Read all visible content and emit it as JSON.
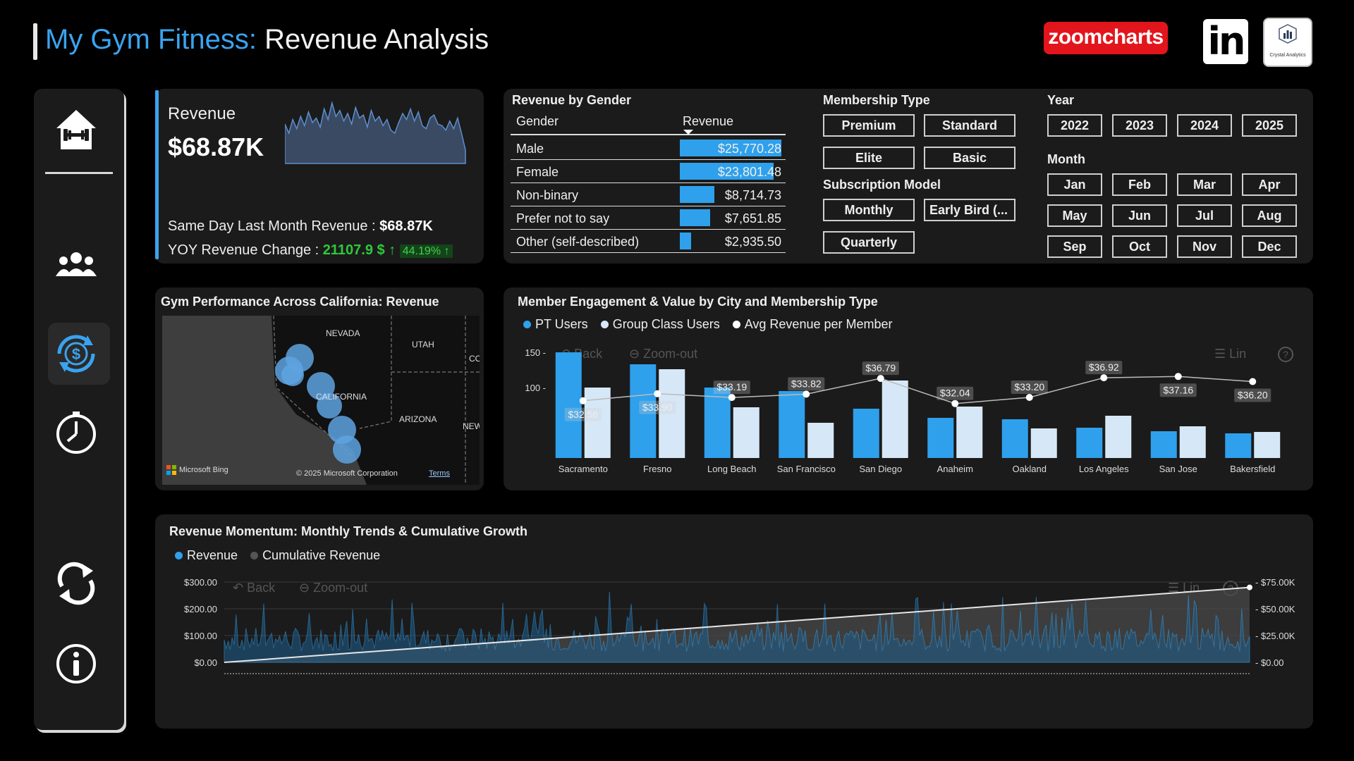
{
  "header": {
    "brand": "My Gym Fitness:",
    "title": " Revenue Analysis"
  },
  "logos": {
    "zoomcharts": "zoomcharts",
    "linkedin": "in",
    "crystal": "Crystal Analytics"
  },
  "sidebar": {
    "items": [
      "home-gym",
      "members",
      "revenue",
      "time",
      "refresh",
      "info"
    ],
    "active": "revenue"
  },
  "kpi": {
    "label": "Revenue",
    "value": "$68.87K",
    "same_day_label": "Same Day Last Month Revenue : ",
    "same_day_value": "$68.87K",
    "yoy_label": "YOY Revenue Change : ",
    "yoy_value": "21107.9 $",
    "yoy_pct": "44.19%",
    "sparkline": [
      52,
      40,
      58,
      46,
      62,
      50,
      68,
      54,
      60,
      48,
      72,
      58,
      80,
      62,
      70,
      56,
      66,
      52,
      74,
      60,
      64,
      48,
      70,
      56,
      62,
      50,
      58,
      44,
      40,
      54,
      66,
      58,
      72,
      56,
      68,
      50,
      46,
      60,
      64,
      52,
      50,
      44,
      56,
      46,
      60,
      40,
      18
    ]
  },
  "gender": {
    "title": "Revenue by Gender",
    "col_gender": "Gender",
    "col_revenue": "Revenue",
    "rows": [
      {
        "label": "Male",
        "value": "$25,770.28",
        "amount": 25770.28
      },
      {
        "label": "Female",
        "value": "$23,801.48",
        "amount": 23801.48
      },
      {
        "label": "Non-binary",
        "value": "$8,714.73",
        "amount": 8714.73
      },
      {
        "label": "Prefer not to say",
        "value": "$7,651.85",
        "amount": 7651.85
      },
      {
        "label": "Other (self-described)",
        "value": "$2,935.50",
        "amount": 2935.5
      }
    ]
  },
  "membership": {
    "title": "Membership Type",
    "options": [
      "Premium",
      "Standard",
      "Elite",
      "Basic"
    ]
  },
  "subscription": {
    "title": "Subscription Model",
    "options": [
      "Monthly",
      "Early Bird (...",
      "Quarterly"
    ]
  },
  "year": {
    "title": "Year",
    "options": [
      "2022",
      "2023",
      "2024",
      "2025"
    ]
  },
  "month": {
    "title": "Month",
    "options": [
      "Jan",
      "Feb",
      "Mar",
      "Apr",
      "May",
      "Jun",
      "Jul",
      "Aug",
      "Sep",
      "Oct",
      "Nov",
      "Dec"
    ]
  },
  "map": {
    "title": "Gym Performance Across California: Revenue",
    "labels": [
      "NEVADA",
      "UTAH",
      "CALIFORNIA",
      "ARIZONA",
      "CO",
      "NEW"
    ],
    "attribution": "Microsoft Bing",
    "copyright": "© 2025 Microsoft Corporation",
    "terms": "Terms"
  },
  "engagement": {
    "title": "Member Engagement & Value by City and Membership Type",
    "legend": [
      "PT Users",
      "Group Class Users",
      "Avg Revenue per Member"
    ],
    "controls": {
      "back": "Back",
      "zoom": "Zoom-out",
      "lin": "Lin",
      "help": "?"
    },
    "colors": {
      "pt": "#2fa0ec",
      "group": "#d6e8f8",
      "avg": "#ffffff"
    }
  },
  "momentum": {
    "title": "Revenue Momentum: Monthly Trends & Cumulative Growth",
    "legend": [
      "Revenue",
      "Cumulative Revenue"
    ],
    "controls": {
      "back": "Back",
      "zoom": "Zoom-out",
      "lin": "Lin",
      "help": "?"
    },
    "colors": {
      "revenue": "#2fa0ec",
      "cumulative": "#8a8a8a"
    }
  },
  "chart_data": [
    {
      "type": "bar",
      "title": "Member Engagement & Value by City and Membership Type",
      "categories": [
        "Sacramento",
        "Fresno",
        "Long Beach",
        "San Francisco",
        "San Diego",
        "Anaheim",
        "Oakland",
        "Los Angeles",
        "San Jose",
        "Bakersfield"
      ],
      "series": [
        {
          "name": "PT Users",
          "values": [
            150,
            133,
            100,
            95,
            70,
            57,
            55,
            43,
            38,
            35
          ]
        },
        {
          "name": "Group Class Users",
          "values": [
            100,
            126,
            72,
            50,
            110,
            73,
            42,
            60,
            45,
            37
          ]
        },
        {
          "name": "Avg Revenue per Member",
          "values": [
            32.56,
            33.9,
            33.19,
            33.82,
            36.79,
            32.04,
            33.2,
            36.92,
            37.16,
            36.2
          ],
          "labels": [
            "$32.56",
            "$33.90",
            "$33.19",
            "$33.82",
            "$36.79",
            "$32.04",
            "$33.20",
            "$36.92",
            "$37.16",
            "$36.20"
          ]
        }
      ],
      "y_ticks": [
        "150",
        "100"
      ],
      "ylim": [
        0,
        150
      ]
    },
    {
      "type": "area",
      "title": "Revenue Momentum: Monthly Trends & Cumulative Growth",
      "series": [
        {
          "name": "Revenue",
          "axis": "left",
          "ylim": [
            0,
            300
          ],
          "note": "daily revenue, roughly $20–$300 per point"
        },
        {
          "name": "Cumulative Revenue",
          "axis": "right",
          "start": 0,
          "end": 70000,
          "ylim": [
            0,
            75000
          ]
        }
      ],
      "y_left_ticks": [
        "$300.00",
        "$200.00",
        "$100.00",
        "$0.00"
      ],
      "y_right_ticks": [
        "$75.00K",
        "$50.00K",
        "$25.00K",
        "$0.00"
      ]
    }
  ]
}
